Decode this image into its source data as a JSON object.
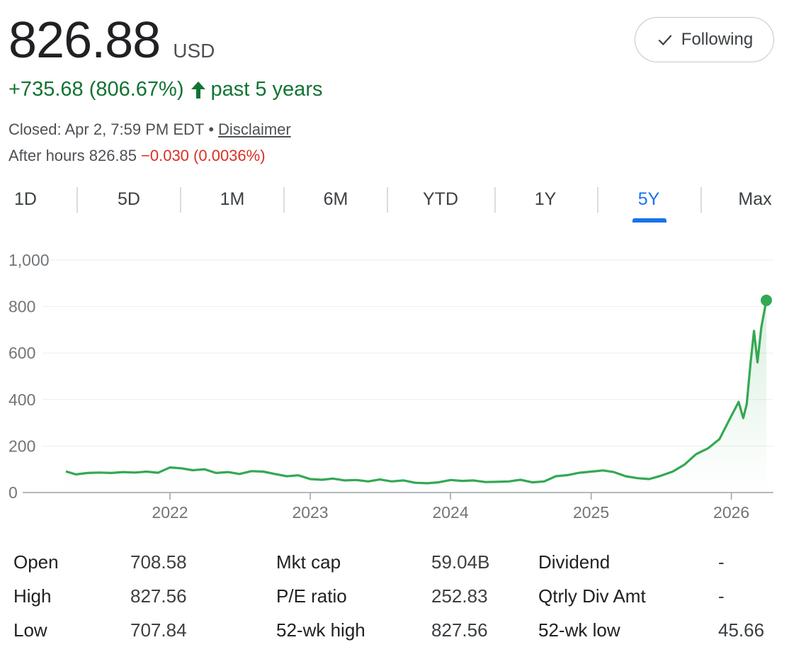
{
  "quote": {
    "price": "826.88",
    "currency": "USD",
    "change": "+735.68 (806.67%)",
    "period": "past 5 years",
    "closed_text": "Closed: Apr 2, 7:59 PM EDT",
    "separator": "•",
    "disclaimer": "Disclaimer",
    "after_hours_label": "After hours 826.85",
    "after_hours_change": "−0.030 (0.0036%)"
  },
  "follow_button": {
    "label": "Following",
    "icon": "check-icon"
  },
  "tabs": [
    {
      "label": "1D"
    },
    {
      "label": "5D"
    },
    {
      "label": "1M"
    },
    {
      "label": "6M"
    },
    {
      "label": "YTD"
    },
    {
      "label": "1Y"
    },
    {
      "label": "5Y",
      "active": true
    },
    {
      "label": "Max"
    }
  ],
  "colors": {
    "positive": "#137333",
    "negative": "#d93025",
    "accent": "#1a73e8",
    "line": "#34a853"
  },
  "chart_data": {
    "type": "line",
    "title": "",
    "xlabel": "",
    "ylabel": "",
    "ylim": [
      0,
      1000
    ],
    "xlim": [
      "2021-04-05",
      "2026-04-02"
    ],
    "y_ticks": [
      "0",
      "200",
      "400",
      "600",
      "800",
      "1,000"
    ],
    "x_ticks": [
      "2022",
      "2023",
      "2024",
      "2025",
      "2026"
    ],
    "grid": true,
    "series": [
      {
        "x": [
          "2021-04-05",
          "2021-05-01",
          "2021-06-01",
          "2021-07-01",
          "2021-08-01",
          "2021-09-01",
          "2021-10-01",
          "2021-11-01",
          "2021-12-01",
          "2022-01-01",
          "2022-02-01",
          "2022-03-01",
          "2022-04-01",
          "2022-05-01",
          "2022-06-01",
          "2022-07-01",
          "2022-08-01",
          "2022-09-01",
          "2022-10-01",
          "2022-11-01",
          "2022-12-01",
          "2023-01-01",
          "2023-02-01",
          "2023-03-01",
          "2023-04-01",
          "2023-05-01",
          "2023-06-01",
          "2023-07-01",
          "2023-08-01",
          "2023-09-01",
          "2023-10-01",
          "2023-11-01",
          "2023-12-01",
          "2024-01-01",
          "2024-02-01",
          "2024-03-01",
          "2024-04-01",
          "2024-05-01",
          "2024-06-01",
          "2024-07-01",
          "2024-08-01",
          "2024-09-01",
          "2024-10-01",
          "2024-11-01",
          "2024-12-01",
          "2025-01-01",
          "2025-02-01",
          "2025-03-01",
          "2025-04-01",
          "2025-05-01",
          "2025-06-01",
          "2025-07-01",
          "2025-08-01",
          "2025-09-01",
          "2025-10-01",
          "2025-11-01",
          "2025-12-01",
          "2026-01-01",
          "2026-01-20",
          "2026-02-01",
          "2026-02-10",
          "2026-02-20",
          "2026-03-01",
          "2026-03-10",
          "2026-03-20",
          "2026-04-02"
        ],
        "y": [
          91,
          78,
          84,
          86,
          84,
          88,
          86,
          90,
          85,
          108,
          104,
          96,
          100,
          84,
          88,
          80,
          92,
          90,
          80,
          70,
          74,
          58,
          55,
          60,
          52,
          54,
          48,
          56,
          48,
          52,
          42,
          40,
          44,
          54,
          50,
          52,
          45,
          46,
          48,
          55,
          44,
          48,
          70,
          75,
          85,
          90,
          95,
          88,
          70,
          62,
          58,
          72,
          90,
          120,
          165,
          190,
          230,
          330,
          390,
          320,
          380,
          560,
          695,
          560,
          710,
          827
        ]
      }
    ],
    "last_value": 826.88
  },
  "stats": {
    "rows": [
      [
        {
          "label": "Open",
          "value": "708.58"
        },
        {
          "label": "Mkt cap",
          "value": "59.04B"
        },
        {
          "label": "Dividend",
          "value": "-"
        }
      ],
      [
        {
          "label": "High",
          "value": "827.56"
        },
        {
          "label": "P/E ratio",
          "value": "252.83"
        },
        {
          "label": "Qtrly Div Amt",
          "value": "-"
        }
      ],
      [
        {
          "label": "Low",
          "value": "707.84"
        },
        {
          "label": "52-wk high",
          "value": "827.56"
        },
        {
          "label": "52-wk low",
          "value": "45.66"
        }
      ]
    ]
  }
}
